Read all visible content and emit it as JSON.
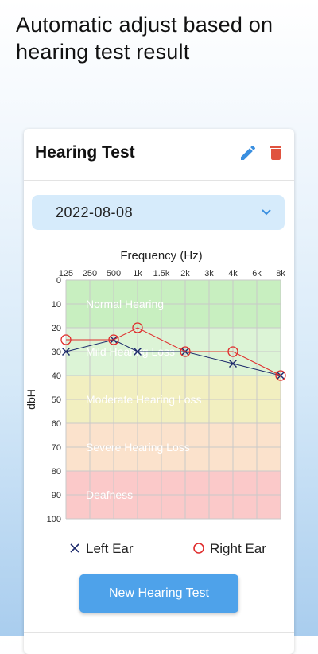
{
  "headline": "Automatic adjust based on hearing test result",
  "card": {
    "title": "Hearing Test",
    "edit_icon": "pencil-icon",
    "delete_icon": "trash-icon"
  },
  "date_select": {
    "value": "2022-08-08",
    "icon": "chevron-down-icon"
  },
  "chart_data": {
    "type": "line",
    "xlabel": "Frequency (Hz)",
    "ylabel": "dbH",
    "x_ticks": [
      "125",
      "250",
      "500",
      "1k",
      "1.5k",
      "2k",
      "3k",
      "4k",
      "6k",
      "8k"
    ],
    "y_ticks": [
      0,
      10,
      20,
      30,
      40,
      50,
      60,
      70,
      80,
      90,
      100
    ],
    "ylim": [
      0,
      100
    ],
    "y_inverted": true,
    "bands": [
      {
        "label": "Normal Hearing",
        "from": 0,
        "to": 20,
        "color": "#c8efc0"
      },
      {
        "label": "Mild Hearing Loss",
        "from": 20,
        "to": 40,
        "color": "#dcf4d6"
      },
      {
        "label": "Moderate Hearing Loss",
        "from": 40,
        "to": 60,
        "color": "#f2efc0"
      },
      {
        "label": "Severe Hearing Loss",
        "from": 60,
        "to": 80,
        "color": "#fbe2cc"
      },
      {
        "label": "Deafness",
        "from": 80,
        "to": 100,
        "color": "#fbc9c9"
      }
    ],
    "series": [
      {
        "name": "Left Ear",
        "marker": "x",
        "color": "#1c2a6b",
        "x": [
          "125",
          "500",
          "1k",
          "2k",
          "4k",
          "8k"
        ],
        "values": [
          30,
          25,
          30,
          30,
          35,
          40
        ]
      },
      {
        "name": "Right Ear",
        "marker": "circle",
        "color": "#e02b2b",
        "x": [
          "125",
          "500",
          "1k",
          "2k",
          "4k",
          "8k"
        ],
        "values": [
          25,
          25,
          20,
          30,
          30,
          40
        ]
      }
    ],
    "grid": true
  },
  "legend": {
    "left_label": "Left Ear",
    "right_label": "Right Ear"
  },
  "new_test_button": "New Hearing Test"
}
